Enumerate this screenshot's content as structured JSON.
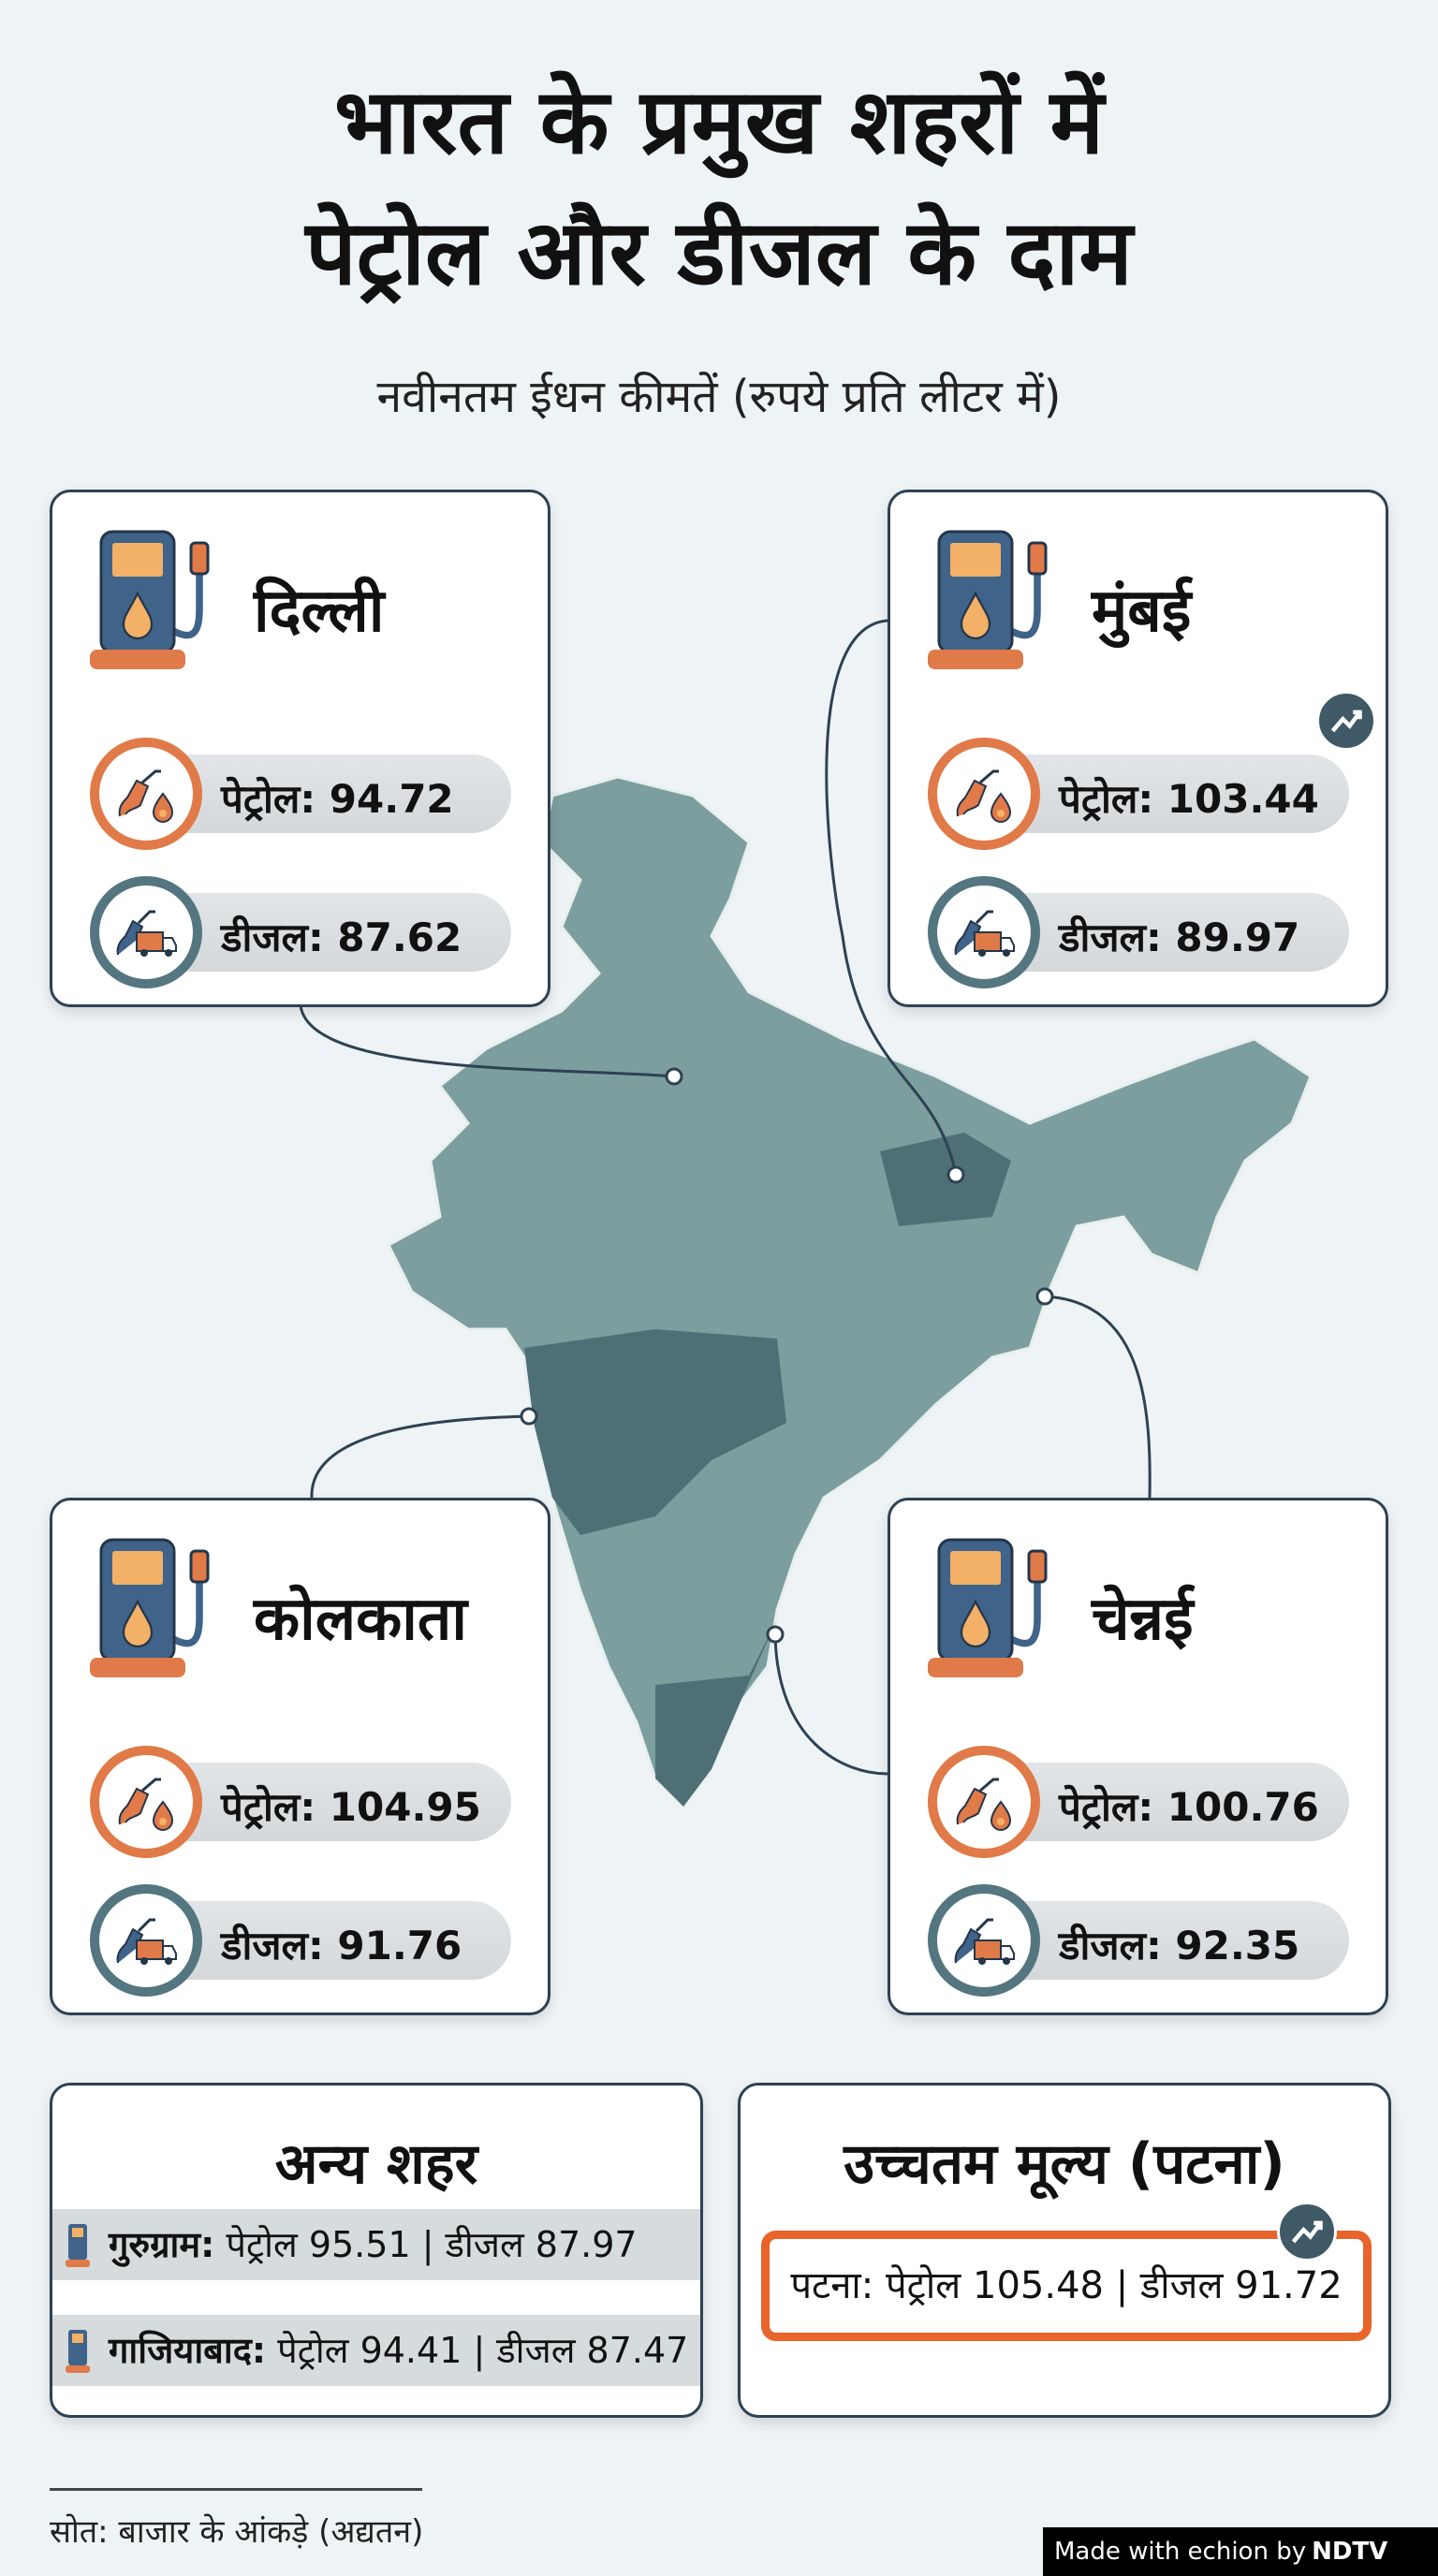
{
  "header": {
    "title_line1": "भारत के प्रमुख शहरों में",
    "title_line2": "पेट्रोल और डीजल के दाम",
    "subtitle": "नवीनतम ईधन कीमतें (रुपये प्रति लीटर में)"
  },
  "cities": [
    {
      "name": "दिल्ली",
      "petrol": "पेट्रोल: 94.72",
      "diesel": "डीजल: 87.62",
      "trend": false
    },
    {
      "name": "मुंबई",
      "petrol": "पेट्रोल: 103.44",
      "diesel": "डीजल: 89.97",
      "trend": true
    },
    {
      "name": "कोलकाता",
      "petrol": "पेट्रोल: 104.95",
      "diesel": "डीजल: 91.76",
      "trend": false
    },
    {
      "name": "चेन्नई",
      "petrol": "पेट्रोल: 100.76",
      "diesel": "डीजल: 92.35",
      "trend": false
    }
  ],
  "other_cities": {
    "heading": "अन्य शहर",
    "rows": [
      {
        "city": "गुरुग्राम:",
        "prices": " पेट्रोल 95.51 | डीजल 87.97"
      },
      {
        "city": "गाजियाबाद:",
        "prices": " पेट्रोल 94.41 | डीजल 87.47"
      }
    ]
  },
  "highest": {
    "heading": "उच्चतम मूल्य (पटना)",
    "text": "पटना: पेट्रोल 105.48 | डीजल 91.72"
  },
  "source": "सोत: बाजार के आंकड़े (अद्यतन)",
  "credit": {
    "made_with": "Made with echion by",
    "brand": "NDTV"
  },
  "colors": {
    "accent": "#e07a48",
    "teal": "#537680",
    "map": "#7d9e9e",
    "map_dark": "#4f6f76"
  }
}
